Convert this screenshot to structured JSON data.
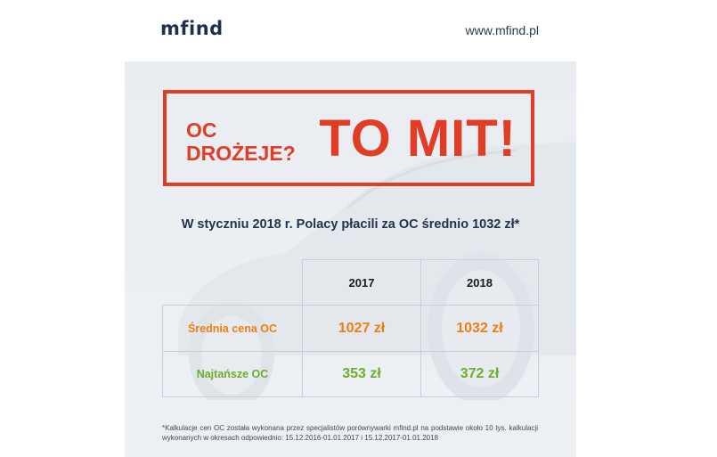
{
  "header": {
    "logo": "mfind",
    "url": "www.mfind.pl"
  },
  "headline": {
    "question_line1": "OC",
    "question_line2": "DROŻEJE?",
    "answer": "TO MIT!"
  },
  "subtitle": "W styczniu 2018 r. Polacy płacili za OC średnio 1032 zł*",
  "table": {
    "columns": [
      "2017",
      "2018"
    ],
    "rows": [
      {
        "label": "Średnia cena OC",
        "values": [
          "1027 zł",
          "1032 zł"
        ]
      },
      {
        "label": "Najtańsze OC",
        "values": [
          "353 zł",
          "372 zł"
        ]
      }
    ]
  },
  "footnote": "*Kalkulacje cen OC została wykonana przez specjalistów porównywarki mfind.pl na podstawie około 10 tys. kalkulacji wykonanych w okresach odpowiednio: 15.12.2016-01.01.2017 i 15.12.2017-01.01.2018",
  "colors": {
    "accent_red": "#e13d26",
    "orange": "#ef7d12",
    "green": "#6aae2a",
    "navy": "#1d2f4f"
  }
}
